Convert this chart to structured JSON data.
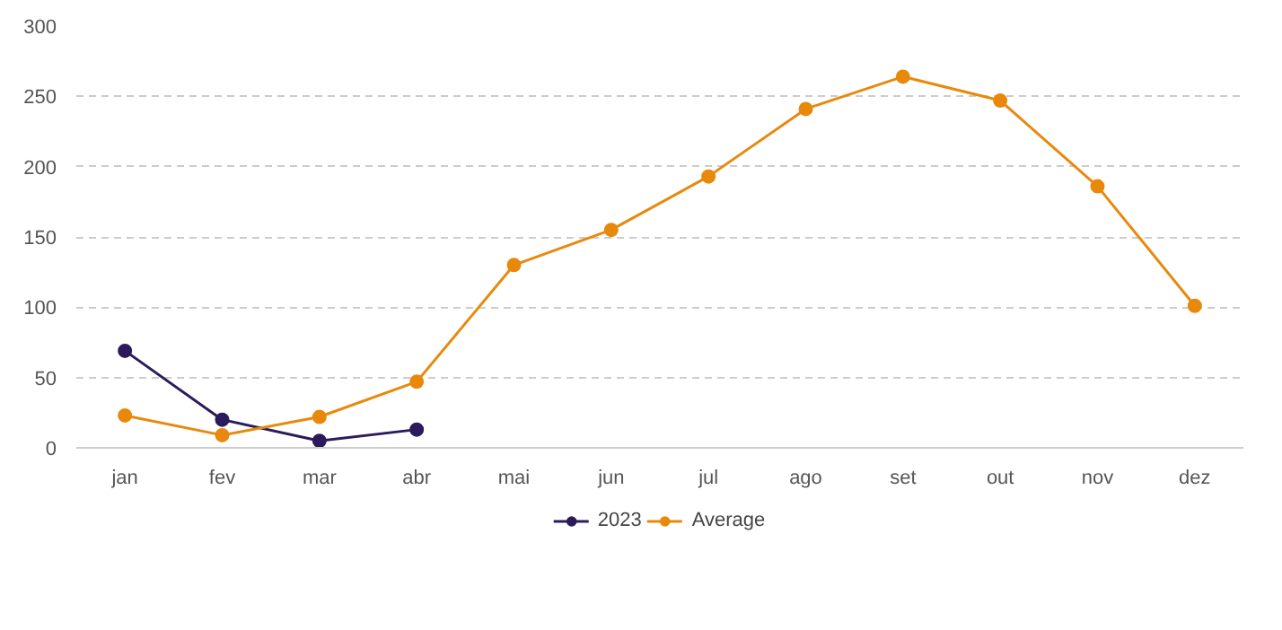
{
  "chart_data": {
    "type": "line",
    "categories": [
      "jan",
      "fev",
      "mar",
      "abr",
      "mai",
      "jun",
      "jul",
      "ago",
      "set",
      "out",
      "nov",
      "dez"
    ],
    "series": [
      {
        "name": "2023",
        "color": "#2b1b5c",
        "values": [
          69,
          20,
          5,
          13,
          null,
          null,
          null,
          null,
          null,
          null,
          null,
          null
        ]
      },
      {
        "name": "Average",
        "color": "#e8890c",
        "values": [
          23,
          9,
          22,
          47,
          130,
          155,
          193,
          241,
          264,
          247,
          186,
          101
        ]
      }
    ],
    "ylim": [
      0,
      300
    ],
    "yticks": [
      0,
      50,
      100,
      150,
      200,
      250,
      300
    ],
    "grid": "y",
    "legend": "bottom",
    "marker": "circle",
    "line_style": "solid"
  }
}
